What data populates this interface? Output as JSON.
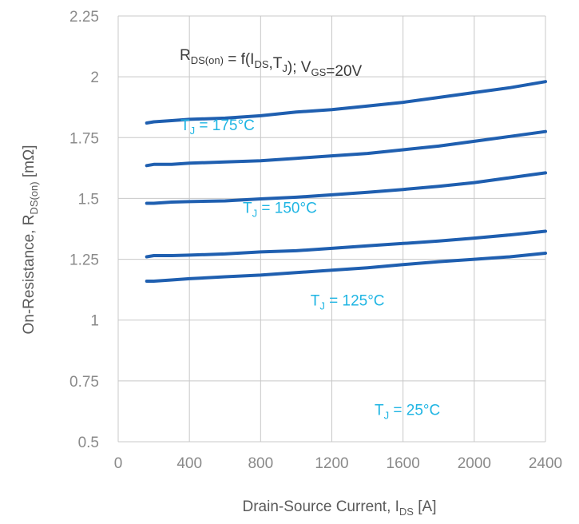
{
  "chart_data": {
    "type": "line",
    "title": "",
    "formula": {
      "parts": [
        {
          "t": "R",
          "sub": "DS(on)"
        },
        {
          "t": " = f(I",
          "sub": "DS"
        },
        {
          "t": ",T",
          "sub": "J"
        },
        {
          "t": "); V",
          "sub": "GS"
        },
        {
          "t": "=20V",
          "sub": ""
        }
      ]
    },
    "xlabel": {
      "main": "Drain-Source Current, I",
      "sub": "DS",
      "tail": " [A]"
    },
    "ylabel": {
      "main": "On-Resistance, R",
      "sub": "DS(on)",
      "tail": " [mΩ]"
    },
    "xlim": [
      0,
      2400
    ],
    "ylim": [
      0.5,
      2.25
    ],
    "xticks": [
      "0",
      "400",
      "800",
      "1200",
      "1600",
      "2000",
      "2400"
    ],
    "yticks": [
      "0.5",
      "0.75",
      "1",
      "1.25",
      "1.5",
      "1.75",
      "2",
      "2.25"
    ],
    "grid": true,
    "series_color": "#1f5fb0",
    "annotation_color": "#1fb5e3",
    "annotations": [
      {
        "prefix": "T",
        "sub": "J",
        "text": " = 175°C",
        "x": 350,
        "y": 1.78
      },
      {
        "prefix": "T",
        "sub": "J",
        "text": " = 150°C",
        "x": 700,
        "y": 1.44
      },
      {
        "prefix": "T",
        "sub": "J",
        "text": " = 125°C",
        "x": 1080,
        "y": 1.06
      },
      {
        "prefix": "T",
        "sub": "J",
        "text": " = 25°C",
        "x": 1440,
        "y": 0.61
      }
    ],
    "series": [
      {
        "x": [
          160,
          200,
          300,
          400,
          600,
          800,
          1000,
          1200,
          1400,
          1600,
          1800,
          2000,
          2200,
          2400
        ],
        "y": [
          1.81,
          1.815,
          1.82,
          1.825,
          1.83,
          1.84,
          1.855,
          1.865,
          1.88,
          1.895,
          1.915,
          1.935,
          1.955,
          1.98
        ]
      },
      {
        "x": [
          160,
          200,
          300,
          400,
          600,
          800,
          1000,
          1200,
          1400,
          1600,
          1800,
          2000,
          2200,
          2400
        ],
        "y": [
          1.635,
          1.64,
          1.64,
          1.645,
          1.65,
          1.655,
          1.665,
          1.675,
          1.685,
          1.7,
          1.715,
          1.735,
          1.755,
          1.775
        ]
      },
      {
        "x": [
          160,
          200,
          300,
          400,
          600,
          800,
          1000,
          1200,
          1400,
          1600,
          1800,
          2000,
          2200,
          2400
        ],
        "y": [
          1.48,
          1.48,
          1.485,
          1.487,
          1.49,
          1.498,
          1.505,
          1.515,
          1.525,
          1.537,
          1.55,
          1.565,
          1.585,
          1.605
        ]
      },
      {
        "x": [
          160,
          200,
          300,
          400,
          600,
          800,
          1000,
          1200,
          1400,
          1600,
          1800,
          2000,
          2200,
          2400
        ],
        "y": [
          1.26,
          1.265,
          1.265,
          1.267,
          1.272,
          1.28,
          1.285,
          1.295,
          1.305,
          1.315,
          1.325,
          1.337,
          1.35,
          1.365
        ]
      },
      {
        "x": [
          160,
          200,
          300,
          400,
          600,
          800,
          1000,
          1200,
          1400,
          1600,
          1800,
          2000,
          2200,
          2400
        ],
        "y": [
          1.16,
          1.16,
          1.165,
          1.17,
          1.178,
          1.185,
          1.195,
          1.205,
          1.215,
          1.228,
          1.24,
          1.25,
          1.26,
          1.275
        ]
      }
    ]
  }
}
